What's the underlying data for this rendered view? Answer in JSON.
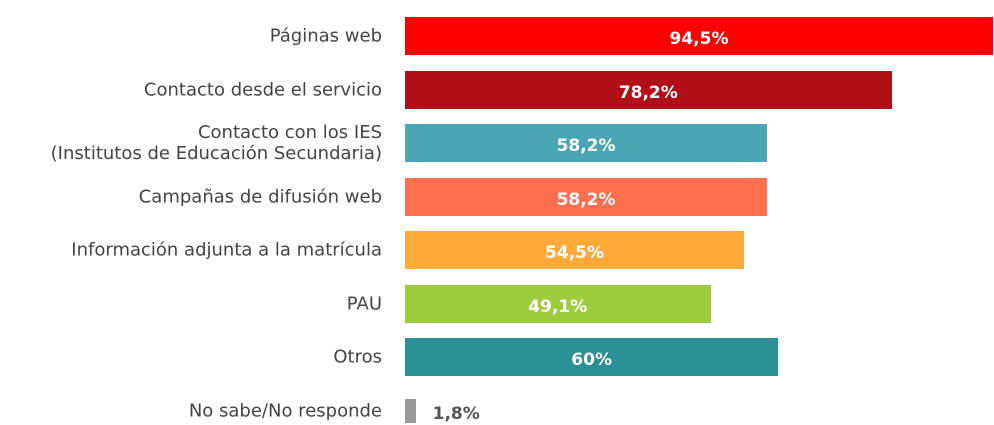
{
  "chart_data": {
    "type": "bar",
    "orientation": "horizontal",
    "categories": [
      "Páginas web",
      "Contacto desde el servicio",
      "Contacto con los IES\n(Institutos de Educación Secundaria)",
      "Campañas de difusión web",
      "Información adjunta a la matrícula",
      "PAU",
      "Otros",
      "No sabe/No responde"
    ],
    "values": [
      94.5,
      78.2,
      58.2,
      58.2,
      54.5,
      49.1,
      60,
      1.8
    ],
    "value_labels": [
      "94,5%",
      "78,2%",
      "58,2%",
      "58,2%",
      "54,5%",
      "49,1%",
      "60%",
      "1,8%"
    ],
    "colors": [
      "#fe0000",
      "#b11018",
      "#4aa6b2",
      "#fe6f50",
      "#feaa3a",
      "#9ccc3c",
      "#2b9196",
      "#999999"
    ]
  }
}
